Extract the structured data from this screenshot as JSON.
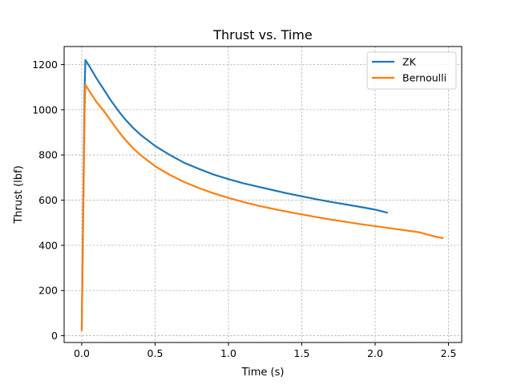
{
  "chart_data": {
    "type": "line",
    "title": "Thrust vs. Time",
    "xlabel": "Time (s)",
    "ylabel": "Thrust (lbf)",
    "xlim": [
      -0.12,
      2.59
    ],
    "ylim": [
      -30,
      1280
    ],
    "xticks": [
      0.0,
      0.5,
      1.0,
      1.5,
      2.0,
      2.5
    ],
    "xtick_labels": [
      "0.0",
      "0.5",
      "1.0",
      "1.5",
      "2.0",
      "2.5"
    ],
    "yticks": [
      0,
      200,
      400,
      600,
      800,
      1000,
      1200
    ],
    "ytick_labels": [
      "0",
      "200",
      "400",
      "600",
      "800",
      "1000",
      "1200"
    ],
    "grid": true,
    "legend_position": "top-right",
    "series": [
      {
        "name": "ZK",
        "color": "#1f77b4",
        "x": [
          0.0,
          0.02,
          0.025,
          0.05,
          0.1,
          0.15,
          0.2,
          0.25,
          0.3,
          0.35,
          0.4,
          0.5,
          0.6,
          0.7,
          0.8,
          0.9,
          1.0,
          1.1,
          1.2,
          1.3,
          1.4,
          1.5,
          1.6,
          1.7,
          1.8,
          1.9,
          2.0,
          2.08
        ],
        "y": [
          25,
          1100,
          1220,
          1195,
          1140,
          1090,
          1040,
          995,
          955,
          920,
          890,
          840,
          800,
          765,
          738,
          713,
          693,
          675,
          660,
          645,
          630,
          617,
          604,
          592,
          581,
          570,
          558,
          545
        ]
      },
      {
        "name": "Bernoulli",
        "color": "#ff7f0e",
        "x": [
          0.0,
          0.02,
          0.025,
          0.05,
          0.1,
          0.15,
          0.2,
          0.25,
          0.3,
          0.35,
          0.4,
          0.5,
          0.6,
          0.7,
          0.8,
          0.9,
          1.0,
          1.1,
          1.2,
          1.3,
          1.4,
          1.5,
          1.6,
          1.7,
          1.8,
          1.9,
          2.0,
          2.1,
          2.2,
          2.3,
          2.4,
          2.46
        ],
        "y": [
          25,
          1000,
          1110,
          1085,
          1035,
          995,
          950,
          905,
          865,
          830,
          800,
          750,
          712,
          680,
          653,
          630,
          610,
          592,
          576,
          562,
          549,
          537,
          525,
          514,
          504,
          494,
          485,
          476,
          467,
          458,
          440,
          432
        ]
      }
    ]
  }
}
